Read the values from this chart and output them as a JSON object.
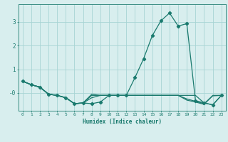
{
  "xlabel": "Humidex (Indice chaleur)",
  "x": [
    0,
    1,
    2,
    3,
    4,
    5,
    6,
    7,
    8,
    9,
    10,
    11,
    12,
    13,
    14,
    15,
    16,
    17,
    18,
    19,
    20,
    21,
    22,
    23
  ],
  "line_main": [
    0.5,
    0.35,
    0.25,
    -0.05,
    -0.1,
    -0.2,
    -0.45,
    -0.42,
    -0.45,
    -0.38,
    -0.1,
    -0.1,
    -0.1,
    0.65,
    1.45,
    2.42,
    3.05,
    3.38,
    2.83,
    2.93,
    -0.32,
    -0.42,
    -0.5,
    -0.1
  ],
  "line2": [
    0.5,
    0.35,
    0.25,
    -0.05,
    -0.1,
    -0.2,
    -0.45,
    -0.42,
    -0.05,
    -0.1,
    -0.1,
    -0.1,
    -0.1,
    -0.1,
    -0.1,
    -0.1,
    -0.1,
    -0.1,
    -0.1,
    -0.1,
    -0.1,
    -0.42,
    -0.5,
    -0.1
  ],
  "line3": [
    0.5,
    0.35,
    0.25,
    -0.05,
    -0.1,
    -0.2,
    -0.45,
    -0.42,
    -0.1,
    -0.1,
    -0.1,
    -0.1,
    -0.1,
    -0.1,
    -0.1,
    -0.1,
    -0.1,
    -0.1,
    -0.1,
    -0.25,
    -0.35,
    -0.45,
    -0.12,
    -0.1
  ],
  "line4": [
    0.5,
    0.35,
    0.25,
    -0.05,
    -0.1,
    -0.2,
    -0.45,
    -0.42,
    -0.2,
    -0.1,
    -0.1,
    -0.1,
    -0.1,
    -0.1,
    -0.1,
    -0.1,
    -0.1,
    -0.1,
    -0.1,
    -0.3,
    -0.38,
    -0.48,
    -0.1,
    -0.1
  ],
  "line_color": "#1a7a6e",
  "bg_color": "#d8eeee",
  "grid_color": "#a8d4d4",
  "ylim": [
    -0.75,
    3.75
  ],
  "xlim": [
    -0.5,
    23.5
  ],
  "marker": "D",
  "marker_size": 2.2,
  "linewidth": 0.9
}
